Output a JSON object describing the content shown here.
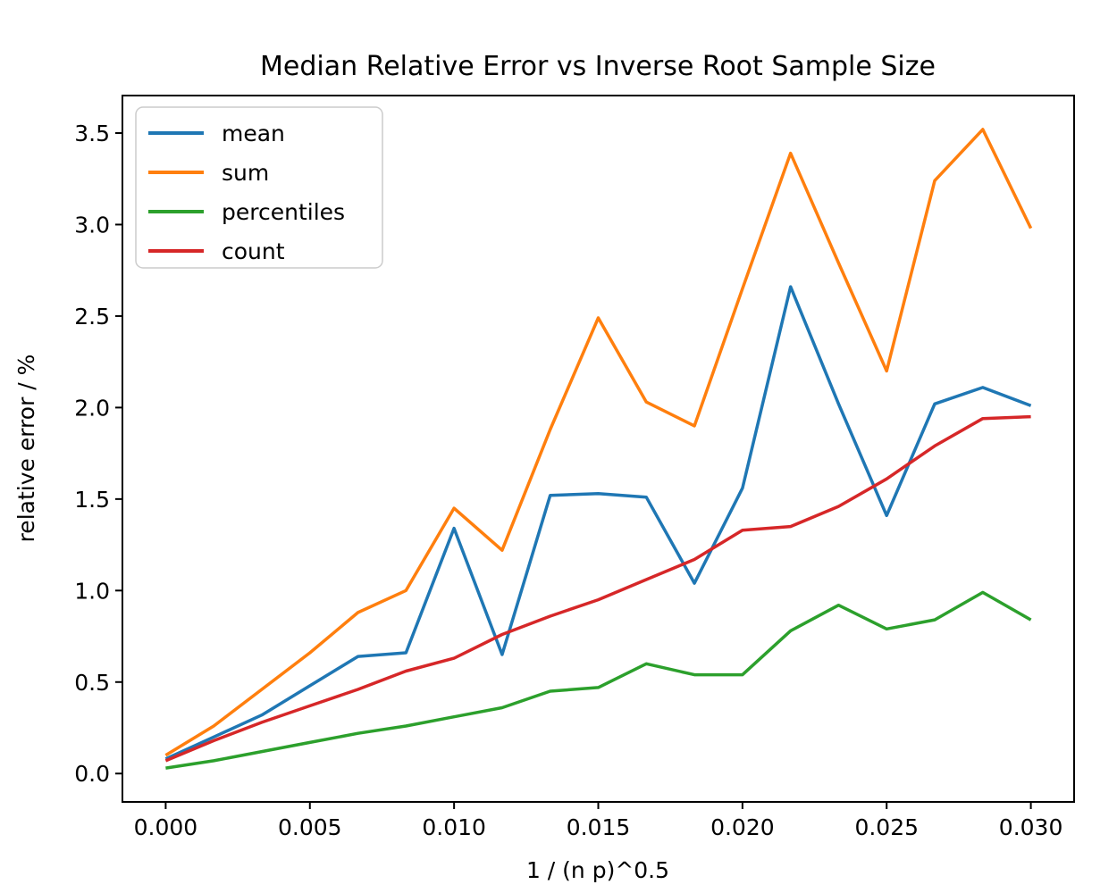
{
  "chart_data": {
    "type": "line",
    "title": "Median Relative Error vs Inverse Root Sample Size",
    "xlabel": "1 / (n p)^0.5",
    "ylabel": "relative error / %",
    "grid": false,
    "legend_position": "upper left",
    "xlim": [
      -0.0015,
      0.0315
    ],
    "ylim": [
      -0.155,
      3.705
    ],
    "xticks": {
      "values": [
        0.0,
        0.005,
        0.01,
        0.015,
        0.02,
        0.025,
        0.03
      ],
      "labels": [
        "0.000",
        "0.005",
        "0.010",
        "0.015",
        "0.020",
        "0.025",
        "0.030"
      ]
    },
    "yticks": {
      "values": [
        0.0,
        0.5,
        1.0,
        1.5,
        2.0,
        2.5,
        3.0,
        3.5
      ],
      "labels": [
        "0.0",
        "0.5",
        "1.0",
        "1.5",
        "2.0",
        "2.5",
        "3.0",
        "3.5"
      ]
    },
    "x": [
      0.0,
      0.001667,
      0.003333,
      0.005,
      0.006667,
      0.008333,
      0.01,
      0.011667,
      0.013333,
      0.015,
      0.016667,
      0.018333,
      0.02,
      0.021667,
      0.023333,
      0.025,
      0.026667,
      0.028333,
      0.03
    ],
    "series": [
      {
        "name": "mean",
        "color": "#1f77b4",
        "values": [
          0.08,
          0.2,
          0.32,
          0.48,
          0.64,
          0.66,
          1.34,
          0.65,
          1.52,
          1.53,
          1.51,
          1.04,
          1.56,
          2.66,
          2.02,
          1.41,
          2.02,
          2.11,
          2.01
        ]
      },
      {
        "name": "sum",
        "color": "#ff7f0e",
        "values": [
          0.1,
          0.26,
          0.46,
          0.66,
          0.88,
          1.0,
          1.45,
          1.22,
          1.88,
          2.49,
          2.03,
          1.9,
          2.65,
          3.39,
          2.79,
          2.2,
          3.24,
          3.52,
          2.98
        ]
      },
      {
        "name": "percentiles",
        "color": "#2ca02c",
        "values": [
          0.03,
          0.07,
          0.12,
          0.17,
          0.22,
          0.26,
          0.31,
          0.36,
          0.45,
          0.47,
          0.6,
          0.54,
          0.54,
          0.78,
          0.92,
          0.79,
          0.84,
          0.99,
          0.84
        ]
      },
      {
        "name": "count",
        "color": "#d62728",
        "values": [
          0.07,
          0.18,
          0.28,
          0.37,
          0.46,
          0.56,
          0.63,
          0.76,
          0.86,
          0.95,
          1.06,
          1.17,
          1.33,
          1.35,
          1.46,
          1.61,
          1.79,
          1.94,
          1.95
        ]
      }
    ]
  }
}
